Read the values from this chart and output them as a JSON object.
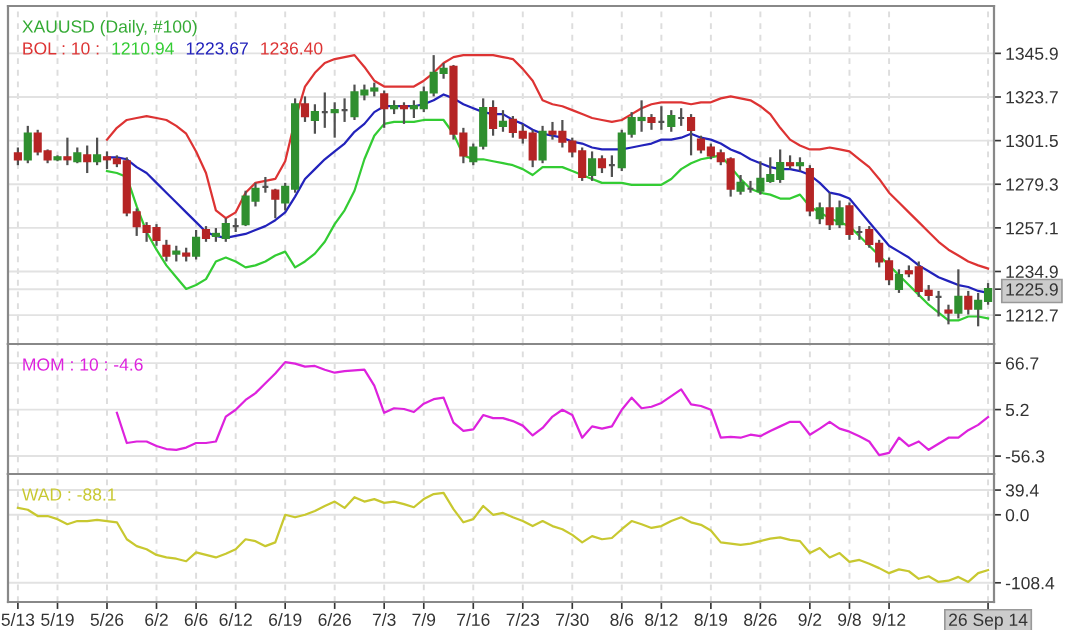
{
  "chart_data": [
    {
      "type": "candlestick",
      "title": "XAUUSD (Daily, #100)",
      "annotations": [
        "BOL : 10 :"
      ],
      "ohlc": [
        [
          1295,
          1298,
          1289,
          1292
        ],
        [
          1292,
          1309,
          1290,
          1305
        ],
        [
          1305,
          1307,
          1294,
          1296
        ],
        [
          1296,
          1297,
          1290,
          1292
        ],
        [
          1292,
          1294,
          1291,
          1293
        ],
        [
          1293,
          1303,
          1289,
          1292
        ],
        [
          1291,
          1298,
          1290,
          1295
        ],
        [
          1294,
          1299,
          1285,
          1291
        ],
        [
          1291,
          1303,
          1289,
          1294
        ],
        [
          1293,
          1296,
          1287,
          1292
        ],
        [
          1292,
          1294,
          1288,
          1290
        ],
        [
          1291,
          1293,
          1263,
          1265
        ],
        [
          1265,
          1267,
          1253,
          1258
        ],
        [
          1258,
          1260,
          1250,
          1255
        ],
        [
          1257,
          1259,
          1248,
          1251
        ],
        [
          1248,
          1251,
          1240,
          1243
        ],
        [
          1244,
          1248,
          1240,
          1245
        ],
        [
          1244,
          1247,
          1240,
          1243
        ],
        [
          1243,
          1256,
          1241,
          1252
        ],
        [
          1256,
          1258,
          1250,
          1252
        ],
        [
          1253,
          1257,
          1250,
          1254
        ],
        [
          1252,
          1262,
          1250,
          1259
        ],
        [
          1258,
          1262,
          1255,
          1258
        ],
        [
          1259,
          1276,
          1258,
          1273
        ],
        [
          1271,
          1280,
          1268,
          1277
        ],
        [
          1278,
          1283,
          1275,
          1278
        ],
        [
          1276,
          1277,
          1262,
          1272
        ],
        [
          1270,
          1280,
          1266,
          1278
        ],
        [
          1277,
          1323,
          1275,
          1320
        ],
        [
          1320,
          1324,
          1311,
          1314
        ],
        [
          1312,
          1320,
          1305,
          1316
        ],
        [
          1316,
          1326,
          1308,
          1316
        ],
        [
          1316,
          1321,
          1303,
          1317
        ],
        [
          1317,
          1323,
          1311,
          1317
        ],
        [
          1314,
          1330,
          1312,
          1326
        ],
        [
          1325,
          1330,
          1322,
          1327
        ],
        [
          1327,
          1331,
          1324,
          1328
        ],
        [
          1325,
          1327,
          1308,
          1318
        ],
        [
          1318,
          1322,
          1315,
          1319
        ],
        [
          1319,
          1321,
          1310,
          1318
        ],
        [
          1318,
          1322,
          1313,
          1319
        ],
        [
          1318,
          1329,
          1316,
          1326
        ],
        [
          1326,
          1345,
          1324,
          1336
        ],
        [
          1336,
          1341,
          1333,
          1338
        ],
        [
          1339,
          1340,
          1302,
          1305
        ],
        [
          1305,
          1308,
          1290,
          1294
        ],
        [
          1291,
          1300,
          1289,
          1298
        ],
        [
          1299,
          1323,
          1297,
          1318
        ],
        [
          1318,
          1322,
          1304,
          1308
        ],
        [
          1309,
          1317,
          1306,
          1311
        ],
        [
          1312,
          1314,
          1303,
          1306
        ],
        [
          1306,
          1310,
          1300,
          1303
        ],
        [
          1305,
          1307,
          1288,
          1292
        ],
        [
          1292,
          1309,
          1290,
          1306
        ],
        [
          1306,
          1311,
          1302,
          1305
        ],
        [
          1306,
          1312,
          1298,
          1301
        ],
        [
          1301,
          1303,
          1293,
          1296
        ],
        [
          1296,
          1298,
          1281,
          1283
        ],
        [
          1284,
          1296,
          1281,
          1292
        ],
        [
          1292,
          1294,
          1285,
          1288
        ],
        [
          1289,
          1294,
          1283,
          1289
        ],
        [
          1288,
          1307,
          1286,
          1305
        ],
        [
          1305,
          1316,
          1303,
          1313
        ],
        [
          1312,
          1322,
          1306,
          1313
        ],
        [
          1313,
          1315,
          1307,
          1311
        ],
        [
          1311,
          1319,
          1307,
          1311
        ],
        [
          1309,
          1317,
          1306,
          1314
        ],
        [
          1313,
          1318,
          1309,
          1313
        ],
        [
          1313,
          1315,
          1294,
          1307
        ],
        [
          1302,
          1304,
          1295,
          1297
        ],
        [
          1298,
          1300,
          1292,
          1294
        ],
        [
          1295,
          1297,
          1289,
          1291
        ],
        [
          1292,
          1293,
          1273,
          1277
        ],
        [
          1276,
          1284,
          1274,
          1280
        ],
        [
          1277,
          1281,
          1275,
          1277
        ],
        [
          1276,
          1291,
          1274,
          1282
        ],
        [
          1281,
          1293,
          1280,
          1284
        ],
        [
          1282,
          1297,
          1280,
          1290
        ],
        [
          1290,
          1294,
          1287,
          1289
        ],
        [
          1289,
          1293,
          1286,
          1290
        ],
        [
          1287,
          1289,
          1263,
          1266
        ],
        [
          1262,
          1270,
          1259,
          1267
        ],
        [
          1267,
          1275,
          1256,
          1259
        ],
        [
          1259,
          1271,
          1257,
          1267
        ],
        [
          1268,
          1270,
          1251,
          1254
        ],
        [
          1255,
          1258,
          1251,
          1255
        ],
        [
          1256,
          1258,
          1247,
          1249
        ],
        [
          1249,
          1251,
          1237,
          1240
        ],
        [
          1240,
          1242,
          1228,
          1231
        ],
        [
          1226,
          1236,
          1224,
          1233
        ],
        [
          1235,
          1238,
          1232,
          1234
        ],
        [
          1237,
          1240,
          1222,
          1225
        ],
        [
          1225,
          1228,
          1220,
          1223
        ],
        [
          1222,
          1225,
          1212,
          1222
        ],
        [
          1215,
          1218,
          1208,
          1214
        ],
        [
          1214,
          1236,
          1211,
          1222
        ],
        [
          1222,
          1225,
          1213,
          1216
        ],
        [
          1216,
          1224,
          1207,
          1220
        ],
        [
          1220,
          1229,
          1218,
          1225.9
        ]
      ],
      "series": [
        {
          "type": "line",
          "name": "1210.94",
          "color": "#33cc33",
          "values": [
            null,
            null,
            null,
            null,
            null,
            null,
            null,
            null,
            null,
            1286,
            1285,
            1283,
            1268,
            1255,
            1246,
            1238,
            1232,
            1226,
            1228,
            1231,
            1240,
            1242,
            1240,
            1237,
            1238,
            1240,
            1243,
            1245,
            1237,
            1240,
            1244,
            1250,
            1259,
            1266,
            1276,
            1292,
            1304,
            1310,
            1311,
            1311,
            1311,
            1312,
            1312,
            1312,
            1305,
            1294,
            1292,
            1292,
            1291,
            1290,
            1289,
            1287,
            1284,
            1288,
            1288,
            1288,
            1286,
            1284,
            1282,
            1280,
            1280,
            1280,
            1279,
            1279,
            1279,
            1279,
            1282,
            1287,
            1290,
            1292,
            1293,
            1294,
            1288,
            1282,
            1277,
            1275,
            1274,
            1272,
            1272,
            1274,
            1268,
            1265,
            1262,
            1260,
            1258,
            1253,
            1248,
            1243,
            1238,
            1233,
            1228,
            1223,
            1218,
            1214,
            1210,
            1210,
            1212,
            1212,
            1211
          ]
        },
        {
          "type": "line",
          "name": "1223.67",
          "color": "#2222bb",
          "values": [
            null,
            null,
            null,
            null,
            null,
            null,
            null,
            null,
            null,
            1293,
            1293,
            1292,
            1288,
            1285,
            1280,
            1275,
            1270,
            1265,
            1260,
            1255,
            1253,
            1252,
            1253,
            1254,
            1256,
            1258,
            1261,
            1265,
            1273,
            1282,
            1287,
            1292,
            1296,
            1300,
            1306,
            1310,
            1316,
            1319,
            1319,
            1319,
            1319,
            1320,
            1322,
            1325,
            1323,
            1320,
            1318,
            1316,
            1315,
            1315,
            1312,
            1310,
            1307,
            1305,
            1304,
            1303,
            1301,
            1300,
            1298,
            1297,
            1297,
            1297,
            1298,
            1299,
            1300,
            1302,
            1302,
            1303,
            1305,
            1303,
            1302,
            1300,
            1297,
            1295,
            1292,
            1290,
            1288,
            1287,
            1287,
            1286,
            1284,
            1280,
            1275,
            1274,
            1272,
            1266,
            1260,
            1254,
            1248,
            1245,
            1242,
            1238,
            1235,
            1232,
            1230,
            1228,
            1227,
            1225,
            1224
          ]
        },
        {
          "type": "line",
          "name": "1236.40",
          "color": "#dd3333",
          "values": [
            null,
            null,
            null,
            null,
            null,
            null,
            null,
            null,
            null,
            1302,
            1308,
            1312,
            1313,
            1314,
            1313,
            1312,
            1309,
            1305,
            1296,
            1285,
            1266,
            1262,
            1265,
            1275,
            1280,
            1281,
            1282,
            1291,
            1312,
            1329,
            1336,
            1341,
            1343,
            1344,
            1345,
            1339,
            1332,
            1329,
            1329,
            1329,
            1329,
            1332,
            1336,
            1341,
            1344,
            1345,
            1345,
            1345,
            1345,
            1344,
            1343,
            1338,
            1332,
            1322,
            1320,
            1319,
            1317,
            1315,
            1313,
            1312,
            1311,
            1312,
            1315,
            1318,
            1320,
            1321,
            1321,
            1321,
            1320,
            1321,
            1321,
            1323,
            1324,
            1323,
            1322,
            1319,
            1315,
            1308,
            1302,
            1299,
            1297,
            1297,
            1298,
            1297,
            1296,
            1292,
            1288,
            1282,
            1275,
            1270,
            1265,
            1260,
            1255,
            1250,
            1246,
            1243,
            1240,
            1238,
            1236.4
          ]
        }
      ],
      "ylim": [
        1198,
        1370
      ],
      "yticks": [
        1345.9,
        1323.7,
        1301.5,
        1279.3,
        1257.1,
        1234.9,
        1225.9,
        1212.7
      ],
      "grid": true,
      "tick_labels": "y"
    },
    {
      "type": "line",
      "series": [
        {
          "name": "MOM : 10 : -4.6",
          "color": "#dd22dd",
          "values": [
            null,
            null,
            null,
            null,
            null,
            null,
            null,
            null,
            null,
            null,
            1,
            -39,
            -37,
            -37,
            -43,
            -47,
            -48,
            -45,
            -39,
            -39,
            -37,
            -4,
            5,
            18,
            27,
            40,
            53,
            68,
            66,
            62,
            63,
            58,
            54,
            56,
            57,
            58,
            37,
            1,
            7,
            6,
            2,
            13,
            19,
            21,
            -12,
            -23,
            -21,
            -2,
            -6,
            -6,
            -10,
            -16,
            -29,
            -19,
            -4,
            5,
            -2,
            -32,
            -17,
            -20,
            -17,
            5,
            21,
            7,
            9,
            14,
            23,
            32,
            12,
            10,
            5,
            -32,
            -31,
            -32,
            -28,
            -30,
            -23,
            -17,
            -11,
            -11,
            -28,
            -20,
            -11,
            -20,
            -24,
            -30,
            -37,
            -55,
            -52,
            -32,
            -43,
            -37,
            -48,
            -40,
            -32,
            -32,
            -22,
            -15,
            -4.6
          ]
        }
      ],
      "ylim": [
        -80,
        92
      ],
      "yticks": [
        66.7,
        5.2,
        -56.3
      ],
      "grid": true,
      "tick_labels": "y"
    },
    {
      "type": "line",
      "categories": [
        "5/13",
        null,
        null,
        null,
        "5/19",
        null,
        null,
        null,
        null,
        "5/26",
        null,
        null,
        null,
        null,
        "6/2",
        null,
        null,
        null,
        "6/6",
        null,
        null,
        null,
        "6/12",
        null,
        null,
        null,
        null,
        "6/19",
        null,
        null,
        null,
        null,
        "6/26",
        null,
        null,
        null,
        null,
        "7/3",
        null,
        null,
        null,
        "7/9",
        null,
        null,
        null,
        null,
        "7/16",
        null,
        null,
        null,
        null,
        "7/23",
        null,
        null,
        null,
        null,
        "7/30",
        null,
        null,
        null,
        null,
        "8/6",
        null,
        null,
        null,
        "8/12",
        null,
        null,
        null,
        null,
        "8/19",
        null,
        null,
        null,
        null,
        "8/26",
        null,
        null,
        null,
        null,
        "9/2",
        null,
        null,
        null,
        "9/8",
        null,
        null,
        null,
        "9/12",
        null,
        null,
        null,
        null,
        null,
        null,
        null,
        null,
        null,
        "26 Sep 14"
      ],
      "series": [
        {
          "name": "WAD : -88.1",
          "color": "#c8c830",
          "values": [
            11,
            8,
            -2,
            -2,
            -7,
            -15,
            -10,
            -10,
            -8,
            -10,
            -12,
            -39,
            -50,
            -55,
            -64,
            -68,
            -70,
            -74,
            -60,
            -64,
            -68,
            -62,
            -55,
            -39,
            -42,
            -50,
            -44,
            0,
            -4,
            0,
            6,
            14,
            21,
            11,
            28,
            21,
            25,
            19,
            21,
            17,
            12,
            25,
            33,
            35,
            9,
            -12,
            -7,
            14,
            0,
            3,
            -4,
            -10,
            -18,
            -10,
            -18,
            -23,
            -32,
            -44,
            -34,
            -39,
            -37,
            -23,
            -10,
            -15,
            -21,
            -18,
            -10,
            -4,
            -12,
            -16,
            -25,
            -44,
            -46,
            -48,
            -46,
            -42,
            -38,
            -36,
            -40,
            -42,
            -61,
            -53,
            -68,
            -61,
            -75,
            -72,
            -78,
            -85,
            -93,
            -87,
            -90,
            -102,
            -98,
            -107,
            -105,
            -99,
            -107,
            -93,
            -88.1
          ]
        }
      ],
      "ylim": [
        -139,
        65
      ],
      "yticks": [
        39.4,
        {
          "value": 0,
          "label": "0.0"
        },
        -108.4
      ],
      "grid": true
    }
  ]
}
